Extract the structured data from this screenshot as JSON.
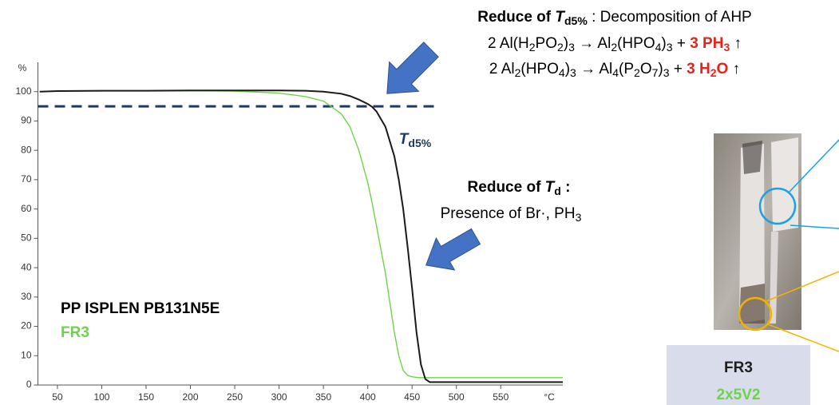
{
  "chart_data": {
    "type": "line",
    "y_unit": "%",
    "x_unit": "°C",
    "xlim": [
      28,
      620
    ],
    "ylim": [
      0,
      110
    ],
    "xticks": [
      50,
      100,
      150,
      200,
      250,
      300,
      350,
      400,
      450,
      500,
      550
    ],
    "yticks": [
      0,
      10,
      20,
      30,
      40,
      50,
      60,
      70,
      80,
      90,
      100
    ],
    "x": [
      30,
      50,
      100,
      150,
      200,
      250,
      300,
      330,
      350,
      370,
      380,
      390,
      400,
      405,
      410,
      420,
      430,
      435,
      440,
      445,
      450,
      455,
      460,
      465,
      470,
      480,
      500,
      550,
      600,
      620
    ],
    "series": [
      {
        "name": "PP ISPLEN PB131N5E",
        "color": "#1a1a1a",
        "values": [
          100,
          100.2,
          100.3,
          100.3,
          100.4,
          100.4,
          100.4,
          100.3,
          100,
          99.3,
          98.5,
          97.3,
          95.8,
          94.8,
          93.2,
          88,
          78,
          70,
          60,
          47,
          33,
          18,
          7,
          2,
          1,
          1,
          1,
          1,
          1,
          1
        ]
      },
      {
        "name": "FR3",
        "color": "#6fd34a",
        "values": [
          100,
          100.2,
          100.3,
          100.3,
          100.3,
          100.2,
          99.5,
          98.3,
          96.8,
          92.5,
          88,
          80,
          69,
          62,
          54,
          38,
          18,
          10,
          5,
          3.3,
          2.8,
          2.6,
          2.5,
          2.5,
          2.5,
          2.5,
          2.5,
          2.5,
          2.5,
          2.5
        ]
      }
    ],
    "reference_line": {
      "value": 95,
      "x": [
        28,
        477
      ],
      "color": "#1f3864"
    },
    "annotations": [
      {
        "parts": [
          {
            "text": "Reduce of ",
            "bold": true
          },
          {
            "text": "T",
            "bold": true,
            "italic": true
          },
          {
            "text": "d5%",
            "bold": true,
            "sub": true
          },
          {
            "text": " :  Decomposition of AHP"
          }
        ]
      },
      {
        "parts": [
          {
            "text": "2 Al(H"
          },
          {
            "text": "2",
            "sub": true
          },
          {
            "text": "PO"
          },
          {
            "text": "2",
            "sub": true
          },
          {
            "text": ")"
          },
          {
            "text": "3",
            "sub": true
          },
          {
            "text": " → Al"
          },
          {
            "text": "2",
            "sub": true
          },
          {
            "text": "(HPO"
          },
          {
            "text": "4",
            "sub": true
          },
          {
            "text": ")"
          },
          {
            "text": "3",
            "sub": true
          },
          {
            "text": " + "
          },
          {
            "text": "3 PH",
            "bold": true,
            "red": true
          },
          {
            "text": "3",
            "bold": true,
            "red": true,
            "sub": true
          },
          {
            "text": " ↑"
          }
        ]
      },
      {
        "parts": [
          {
            "text": "2 Al"
          },
          {
            "text": "2",
            "sub": true
          },
          {
            "text": "(HPO"
          },
          {
            "text": "4",
            "sub": true
          },
          {
            "text": ")"
          },
          {
            "text": "3",
            "sub": true
          },
          {
            "text": " → Al"
          },
          {
            "text": "4",
            "sub": true
          },
          {
            "text": "(P"
          },
          {
            "text": "2",
            "sub": true
          },
          {
            "text": "O"
          },
          {
            "text": "7",
            "sub": true
          },
          {
            "text": ")"
          },
          {
            "text": "3",
            "sub": true
          },
          {
            "text": " + "
          },
          {
            "text": "3 H",
            "bold": true,
            "red": true
          },
          {
            "text": "2",
            "bold": true,
            "red": true,
            "sub": true
          },
          {
            "text": "O",
            "bold": true,
            "red": true
          },
          {
            "text": " ↑"
          }
        ]
      },
      {
        "parts": [
          {
            "text": "T",
            "bold": true,
            "italic": true,
            "navy": true
          },
          {
            "text": "d5%",
            "bold": true,
            "sub": true,
            "navy": true
          }
        ]
      },
      {
        "parts": [
          {
            "text": "Reduce of ",
            "bold": true
          },
          {
            "text": "T",
            "bold": true,
            "italic": true
          },
          {
            "text": "d",
            "bold": true,
            "sub": true
          },
          {
            "text": " :",
            "bold": true
          }
        ]
      },
      {
        "parts": [
          {
            "text": "Presence of Br·, PH"
          },
          {
            "text": "3",
            "sub": true
          }
        ]
      }
    ],
    "sample_box": {
      "title": "FR3",
      "subtitle": "2x5V2"
    }
  }
}
